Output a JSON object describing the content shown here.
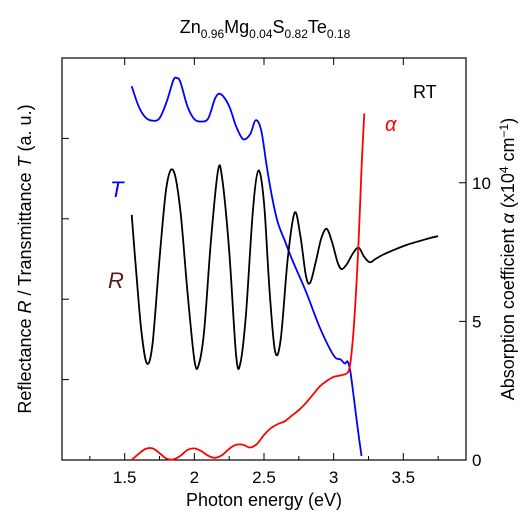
{
  "chart_data": {
    "type": "line",
    "title": {
      "parts": [
        {
          "t": "Zn",
          "sub": false
        },
        {
          "t": "0.96",
          "sub": true
        },
        {
          "t": "Mg",
          "sub": false
        },
        {
          "t": "0.04",
          "sub": true
        },
        {
          "t": "S",
          "sub": false
        },
        {
          "t": "0.82",
          "sub": true
        },
        {
          "t": "Te",
          "sub": false
        },
        {
          "t": "0.18",
          "sub": true
        }
      ]
    },
    "xlabel": "Photon energy (eV)",
    "ylabel_left": {
      "a": "Reflectance ",
      "b": "R",
      "c": " / Transmittance ",
      "d": "T",
      "e": " (a. u.)"
    },
    "ylabel_right": {
      "a": "Absorption coefficient ",
      "b": "α",
      "c": " (x10",
      "d": "4",
      "e": " cm",
      "f": "−1",
      "g": ")"
    },
    "xlim": [
      1.05,
      3.95
    ],
    "ylim_right": [
      0,
      14.5
    ],
    "xticks": [
      "1.5",
      "2",
      "2.5",
      "3",
      "3.5"
    ],
    "xtick_values": [
      1.5,
      2.0,
      2.5,
      3.0,
      3.5
    ],
    "yticks_right": [
      "0",
      "5",
      "10"
    ],
    "ytick_values_right": [
      0,
      5,
      10
    ],
    "left_axis_ticks_fraction": [
      0.2,
      0.4,
      0.6,
      0.8,
      1.0
    ],
    "annotation": "RT",
    "series": [
      {
        "label": "T",
        "color": "#0000ff",
        "axis": "left_arbitrary",
        "points": [
          [
            1.55,
            0.93
          ],
          [
            1.6,
            0.88
          ],
          [
            1.65,
            0.852
          ],
          [
            1.7,
            0.844
          ],
          [
            1.75,
            0.85
          ],
          [
            1.8,
            0.89
          ],
          [
            1.85,
            0.945
          ],
          [
            1.875,
            0.95
          ],
          [
            1.9,
            0.94
          ],
          [
            1.95,
            0.88
          ],
          [
            2.0,
            0.848
          ],
          [
            2.05,
            0.842
          ],
          [
            2.1,
            0.85
          ],
          [
            2.15,
            0.9
          ],
          [
            2.19,
            0.91
          ],
          [
            2.25,
            0.88
          ],
          [
            2.3,
            0.83
          ],
          [
            2.35,
            0.798
          ],
          [
            2.4,
            0.81
          ],
          [
            2.44,
            0.845
          ],
          [
            2.48,
            0.82
          ],
          [
            2.52,
            0.73
          ],
          [
            2.56,
            0.65
          ],
          [
            2.6,
            0.59
          ],
          [
            2.65,
            0.545
          ],
          [
            2.7,
            0.5
          ],
          [
            2.8,
            0.42
          ],
          [
            2.9,
            0.33
          ],
          [
            3.0,
            0.26
          ],
          [
            3.05,
            0.25
          ],
          [
            3.08,
            0.24
          ],
          [
            3.1,
            0.245
          ],
          [
            3.12,
            0.22
          ],
          [
            3.15,
            0.14
          ],
          [
            3.18,
            0.06
          ],
          [
            3.2,
            0.01
          ]
        ]
      },
      {
        "label": "R",
        "color": "#000000",
        "axis": "left_arbitrary",
        "points": [
          [
            1.55,
            0.61
          ],
          [
            1.58,
            0.48
          ],
          [
            1.62,
            0.32
          ],
          [
            1.66,
            0.24
          ],
          [
            1.7,
            0.29
          ],
          [
            1.75,
            0.5
          ],
          [
            1.8,
            0.68
          ],
          [
            1.85,
            0.72
          ],
          [
            1.9,
            0.62
          ],
          [
            1.95,
            0.42
          ],
          [
            2.0,
            0.25
          ],
          [
            2.03,
            0.235
          ],
          [
            2.07,
            0.32
          ],
          [
            2.12,
            0.55
          ],
          [
            2.17,
            0.72
          ],
          [
            2.2,
            0.7
          ],
          [
            2.25,
            0.52
          ],
          [
            2.3,
            0.26
          ],
          [
            2.33,
            0.24
          ],
          [
            2.37,
            0.36
          ],
          [
            2.42,
            0.62
          ],
          [
            2.46,
            0.72
          ],
          [
            2.5,
            0.64
          ],
          [
            2.54,
            0.42
          ],
          [
            2.58,
            0.27
          ],
          [
            2.62,
            0.3
          ],
          [
            2.67,
            0.5
          ],
          [
            2.72,
            0.615
          ],
          [
            2.76,
            0.56
          ],
          [
            2.8,
            0.46
          ],
          [
            2.83,
            0.44
          ],
          [
            2.87,
            0.49
          ],
          [
            2.91,
            0.55
          ],
          [
            2.95,
            0.575
          ],
          [
            2.99,
            0.54
          ],
          [
            3.03,
            0.49
          ],
          [
            3.06,
            0.475
          ],
          [
            3.1,
            0.49
          ],
          [
            3.14,
            0.515
          ],
          [
            3.18,
            0.528
          ],
          [
            3.22,
            0.505
          ],
          [
            3.26,
            0.492
          ],
          [
            3.3,
            0.5
          ],
          [
            3.35,
            0.51
          ],
          [
            3.4,
            0.518
          ],
          [
            3.45,
            0.525
          ],
          [
            3.5,
            0.532
          ],
          [
            3.55,
            0.538
          ],
          [
            3.6,
            0.543
          ],
          [
            3.65,
            0.548
          ],
          [
            3.7,
            0.553
          ],
          [
            3.75,
            0.557
          ]
        ]
      },
      {
        "label": "α",
        "color": "#ff0000",
        "axis": "right",
        "points": [
          [
            1.55,
            0.0
          ],
          [
            1.6,
            0.22
          ],
          [
            1.65,
            0.4
          ],
          [
            1.7,
            0.42
          ],
          [
            1.75,
            0.25
          ],
          [
            1.8,
            0.05
          ],
          [
            1.85,
            0.02
          ],
          [
            1.9,
            0.15
          ],
          [
            1.95,
            0.36
          ],
          [
            2.0,
            0.42
          ],
          [
            2.05,
            0.32
          ],
          [
            2.1,
            0.15
          ],
          [
            2.15,
            0.08
          ],
          [
            2.2,
            0.18
          ],
          [
            2.25,
            0.4
          ],
          [
            2.3,
            0.55
          ],
          [
            2.35,
            0.55
          ],
          [
            2.4,
            0.45
          ],
          [
            2.45,
            0.58
          ],
          [
            2.5,
            0.9
          ],
          [
            2.55,
            1.15
          ],
          [
            2.6,
            1.3
          ],
          [
            2.65,
            1.4
          ],
          [
            2.7,
            1.6
          ],
          [
            2.75,
            1.8
          ],
          [
            2.8,
            2.05
          ],
          [
            2.85,
            2.35
          ],
          [
            2.9,
            2.65
          ],
          [
            2.95,
            2.85
          ],
          [
            3.0,
            3.0
          ],
          [
            3.05,
            3.05
          ],
          [
            3.1,
            3.15
          ],
          [
            3.12,
            3.5
          ],
          [
            3.14,
            4.5
          ],
          [
            3.16,
            6.0
          ],
          [
            3.18,
            8.0
          ],
          [
            3.2,
            10.5
          ],
          [
            3.22,
            12.5
          ]
        ]
      }
    ]
  }
}
